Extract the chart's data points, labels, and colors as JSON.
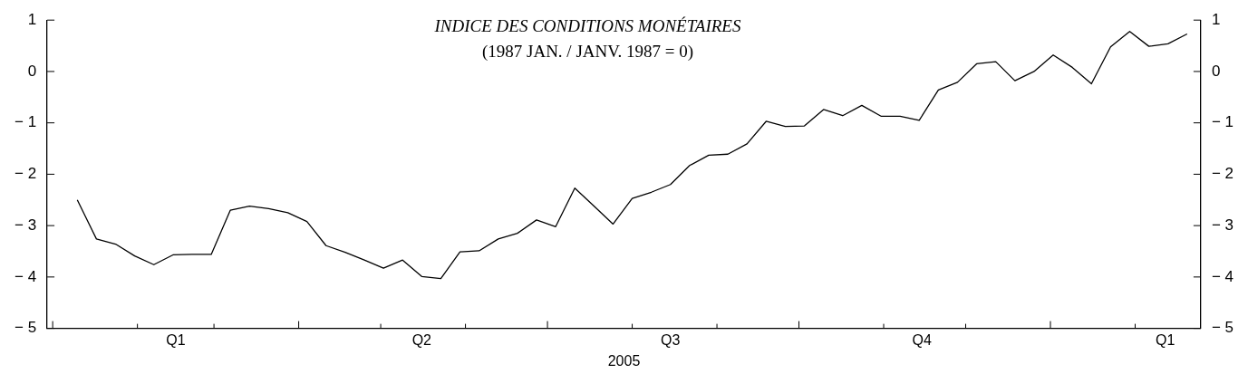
{
  "chart_data": {
    "type": "line",
    "title": "INDICE DES CONDITIONS MONÉTAIRES",
    "subtitle": "(1987 JAN. / JANV. 1987 = 0)",
    "xlabel": "2005",
    "x": [
      "2005-01-10",
      "2005-01-17",
      "2005-01-24",
      "2005-01-31",
      "2005-02-07",
      "2005-02-14",
      "2005-02-21",
      "2005-02-28",
      "2005-03-07",
      "2005-03-14",
      "2005-03-21",
      "2005-03-28",
      "2005-04-04",
      "2005-04-11",
      "2005-04-18",
      "2005-04-25",
      "2005-05-02",
      "2005-05-09",
      "2005-05-16",
      "2005-05-23",
      "2005-05-30",
      "2005-06-06",
      "2005-06-13",
      "2005-06-20",
      "2005-06-27",
      "2005-07-04",
      "2005-07-11",
      "2005-07-18",
      "2005-07-25",
      "2005-08-01",
      "2005-08-08",
      "2005-08-15",
      "2005-08-22",
      "2005-08-29",
      "2005-09-05",
      "2005-09-12",
      "2005-09-19",
      "2005-09-26",
      "2005-10-03",
      "2005-10-10",
      "2005-10-17",
      "2005-10-24",
      "2005-10-31",
      "2005-11-07",
      "2005-11-14",
      "2005-11-21",
      "2005-11-28",
      "2005-12-05",
      "2005-12-12",
      "2005-12-19",
      "2005-12-26",
      "2006-01-02",
      "2006-01-09",
      "2006-01-16",
      "2006-01-23",
      "2006-01-30",
      "2006-02-06",
      "2006-02-13",
      "2006-02-20"
    ],
    "series": [
      {
        "color": "#000000",
        "values": [
          -2.5,
          -3.26,
          -3.36,
          -3.59,
          -3.76,
          -3.57,
          -3.56,
          -3.56,
          -2.7,
          -2.62,
          -2.67,
          -2.75,
          -2.92,
          -3.39,
          -3.52,
          -3.67,
          -3.83,
          -3.67,
          -3.99,
          -4.03,
          -3.51,
          -3.49,
          -3.26,
          -3.15,
          -2.89,
          -3.02,
          -2.27,
          -2.62,
          -2.97,
          -2.47,
          -2.35,
          -2.2,
          -1.83,
          -1.63,
          -1.61,
          -1.41,
          -0.97,
          -1.07,
          -1.06,
          -0.74,
          -0.86,
          -0.66,
          -0.87,
          -0.87,
          -0.95,
          -0.36,
          -0.21,
          0.15,
          0.19,
          -0.18,
          0.0,
          0.32,
          0.08,
          -0.24,
          0.48,
          0.78,
          0.49,
          0.54,
          0.73
        ]
      }
    ],
    "xlim": [
      "2004-12-30",
      "2006-02-25"
    ],
    "xticks": [
      {
        "value": "2005-01-01",
        "label": null
      },
      {
        "value": "2005-02-01",
        "label": null
      },
      {
        "value": "2005-02-15",
        "label": "Q1"
      },
      {
        "value": "2005-03-01",
        "label": null
      },
      {
        "value": "2005-04-01",
        "label": null
      },
      {
        "value": "2005-05-01",
        "label": null
      },
      {
        "value": "2005-05-16",
        "label": "Q2"
      },
      {
        "value": "2005-06-01",
        "label": null
      },
      {
        "value": "2005-07-01",
        "label": null
      },
      {
        "value": "2005-08-01",
        "label": null
      },
      {
        "value": "2005-08-15",
        "label": "Q3"
      },
      {
        "value": "2005-09-01",
        "label": null
      },
      {
        "value": "2005-10-01",
        "label": null
      },
      {
        "value": "2005-11-01",
        "label": null
      },
      {
        "value": "2005-11-15",
        "label": "Q4"
      },
      {
        "value": "2005-12-01",
        "label": null
      },
      {
        "value": "2006-01-01",
        "label": null
      },
      {
        "value": "2006-02-01",
        "label": null
      },
      {
        "value": "2006-02-12",
        "label": "Q1"
      }
    ],
    "ylim": [
      -5,
      1
    ],
    "yticks": [
      -5,
      -4,
      -3,
      -2,
      -1,
      0,
      1
    ],
    "y2lim": [
      -5,
      1
    ],
    "y2ticks": [
      -5,
      -4,
      -3,
      -2,
      -1,
      0,
      1
    ],
    "grid": false,
    "legend": false,
    "marker": "none",
    "line_style": "solid"
  }
}
